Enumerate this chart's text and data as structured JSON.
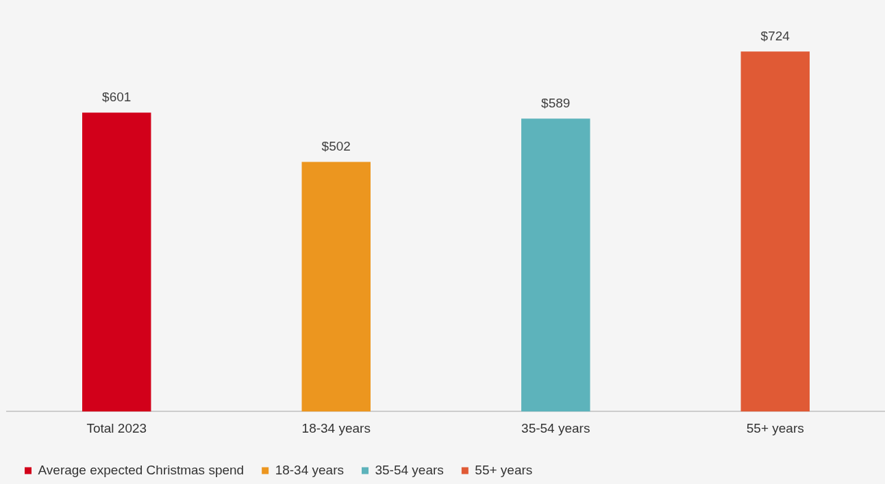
{
  "chart_data": {
    "type": "bar",
    "categories": [
      "Total 2023",
      "18-34 years",
      "35-54 years",
      "55+ years"
    ],
    "series": [
      {
        "name": "Average expected Christmas spend",
        "color": "#d2001a",
        "values": [
          601,
          null,
          null,
          null
        ],
        "value_labels": [
          "$601",
          null,
          null,
          null
        ]
      },
      {
        "name": "18-34 years",
        "color": "#ec961f",
        "values": [
          null,
          502,
          null,
          null
        ],
        "value_labels": [
          null,
          "$502",
          null,
          null
        ]
      },
      {
        "name": "35-54 years",
        "color": "#5db3bb",
        "values": [
          null,
          null,
          589,
          null
        ],
        "value_labels": [
          null,
          null,
          "$589",
          null
        ]
      },
      {
        "name": "55+ years",
        "color": "#e05a35",
        "values": [
          null,
          null,
          null,
          724
        ],
        "value_labels": [
          null,
          null,
          null,
          "$724"
        ]
      }
    ],
    "legend": "bottom",
    "grid": false
  }
}
